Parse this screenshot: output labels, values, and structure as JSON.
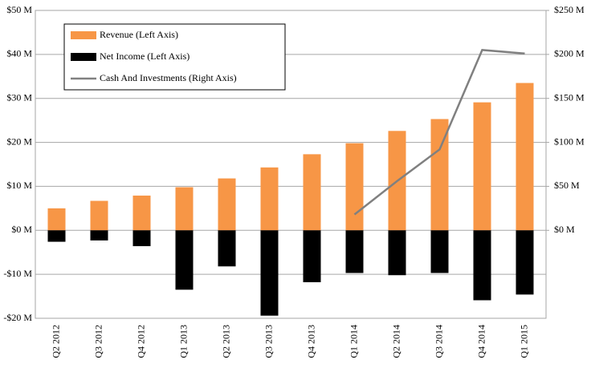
{
  "chart_data": {
    "type": "bar",
    "categories": [
      "Q2 2012",
      "Q3 2012",
      "Q4 2012",
      "Q1 2013",
      "Q2 2013",
      "Q3 2013",
      "Q4 2013",
      "Q1 2014",
      "Q2 2014",
      "Q3 2014",
      "Q4 2014",
      "Q1 2015"
    ],
    "series": [
      {
        "name": "Revenue (Left Axis)",
        "type": "bar",
        "color": "#f79646",
        "values": [
          5.0,
          6.7,
          7.9,
          9.8,
          11.8,
          14.3,
          17.3,
          19.8,
          22.6,
          25.3,
          29.1,
          33.5
        ]
      },
      {
        "name": "Net Income (Left Axis)",
        "type": "bar",
        "color": "#000000",
        "values": [
          -2.6,
          -2.3,
          -3.6,
          -13.5,
          -8.2,
          -19.4,
          -11.8,
          -9.7,
          -10.2,
          -9.7,
          -15.9,
          -14.6
        ]
      },
      {
        "name": "Cash And Investments (Right Axis)",
        "type": "line",
        "axis": "y2",
        "color": "#808080",
        "values": [
          null,
          null,
          null,
          null,
          null,
          null,
          null,
          18,
          56,
          92,
          205,
          201
        ]
      }
    ],
    "ylim": [
      -20,
      50
    ],
    "yticks": [
      {
        "value": -20,
        "label": "-$20 M"
      },
      {
        "value": -10,
        "label": "-$10 M"
      },
      {
        "value": 0,
        "label": "$0 M"
      },
      {
        "value": 10,
        "label": "$10 M"
      },
      {
        "value": 20,
        "label": "$20 M"
      },
      {
        "value": 30,
        "label": "$30 M"
      },
      {
        "value": 40,
        "label": "$40 M"
      },
      {
        "value": 50,
        "label": "$50 M"
      }
    ],
    "y2lim": [
      -100,
      250
    ],
    "y2ticks": [
      {
        "value": 0,
        "label": "$0 M"
      },
      {
        "value": 50,
        "label": "$50 M"
      },
      {
        "value": 100,
        "label": "$100 M"
      },
      {
        "value": 150,
        "label": "$150 M"
      },
      {
        "value": 200,
        "label": "$200 M"
      },
      {
        "value": 250,
        "label": "$250 M"
      }
    ],
    "grid": true,
    "legend": "top-left"
  }
}
